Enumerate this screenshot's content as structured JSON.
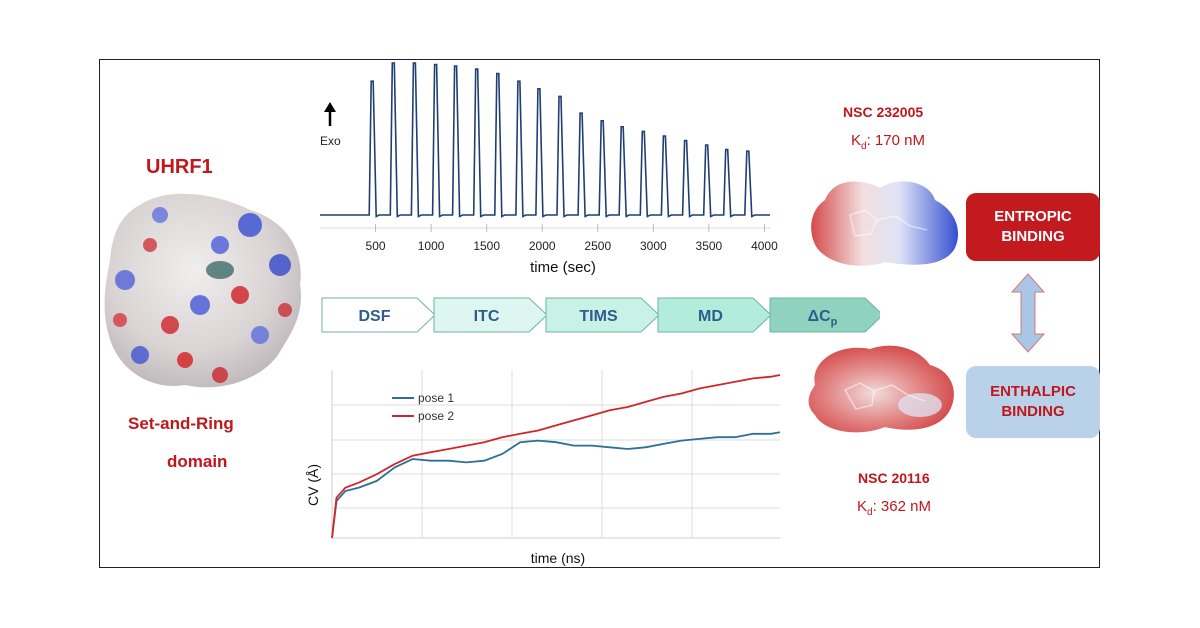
{
  "protein": {
    "name": "UHRF1",
    "domain_line1": "Set-and-Ring",
    "domain_line2": "domain"
  },
  "itc": {
    "exo_label": "Exo",
    "xlabel": "time (sec)",
    "x_ticks": [
      "500",
      "1000",
      "1500",
      "2000",
      "2500",
      "3000",
      "3500",
      "4000"
    ]
  },
  "workflow": {
    "steps": [
      "DSF",
      "ITC",
      "TIMS",
      "MD",
      "ΔC"
    ],
    "last_step_subscript": "p"
  },
  "md": {
    "ylabel": "CV (Å)",
    "xlabel": "time (ns)",
    "legend": [
      "pose 1",
      "pose 2"
    ]
  },
  "compound1": {
    "name": "NSC 232005",
    "kd_label": "K",
    "kd_sub": "d",
    "kd_value": ": 170 nM"
  },
  "compound2": {
    "name": "NSC 20116",
    "kd_label": "K",
    "kd_sub": "d",
    "kd_value": ": 362 nM"
  },
  "binding": {
    "entropic_line1": "ENTROPIC",
    "entropic_line2": "BINDING",
    "enthalpic_line1": "ENTHALPIC",
    "enthalpic_line2": "BINDING"
  },
  "colors": {
    "red_text": "#c0171d",
    "entropic_box": "#c21a1f",
    "enthalpic_box": "#b9d2e9",
    "itc_trace": "#1f3f73",
    "pose1": "#2e6f95",
    "pose2": "#d0262a",
    "step_fills": [
      "#ffffff",
      "#ddf6ef",
      "#c9f2e6",
      "#b4ecdc",
      "#8fd3bf"
    ]
  },
  "chart_data": [
    {
      "type": "line",
      "name": "ITC thermogram",
      "xlabel": "time (sec)",
      "x_ticks": [
        500,
        1000,
        1500,
        2000,
        2500,
        3000,
        3500,
        4000
      ],
      "xlim": [
        0,
        4050
      ],
      "injection_times": [
        470,
        660,
        850,
        1040,
        1220,
        1410,
        1600,
        1790,
        1970,
        2160,
        2350,
        2540,
        2720,
        2910,
        3100,
        3290,
        3480,
        3660,
        3850
      ],
      "relative_peak_heights": [
        0.88,
        1.0,
        1.0,
        0.99,
        0.98,
        0.96,
        0.93,
        0.88,
        0.83,
        0.78,
        0.67,
        0.62,
        0.58,
        0.55,
        0.52,
        0.49,
        0.46,
        0.43,
        0.42
      ]
    },
    {
      "type": "line",
      "name": "MD collective variable",
      "ylabel": "CV (Å)",
      "xlabel": "time (ns)",
      "grid": true,
      "legend_position": "top-left",
      "x_rel": [
        0,
        0.01,
        0.03,
        0.06,
        0.1,
        0.14,
        0.18,
        0.22,
        0.26,
        0.3,
        0.34,
        0.38,
        0.42,
        0.46,
        0.5,
        0.54,
        0.58,
        0.62,
        0.66,
        0.7,
        0.74,
        0.78,
        0.82,
        0.86,
        0.9,
        0.94,
        0.98,
        1.0
      ],
      "series": [
        {
          "name": "pose 1",
          "values": [
            0.0,
            0.22,
            0.28,
            0.3,
            0.34,
            0.42,
            0.47,
            0.46,
            0.46,
            0.45,
            0.46,
            0.5,
            0.57,
            0.58,
            0.57,
            0.55,
            0.55,
            0.54,
            0.53,
            0.54,
            0.56,
            0.58,
            0.59,
            0.6,
            0.6,
            0.62,
            0.62,
            0.63
          ]
        },
        {
          "name": "pose 2",
          "values": [
            0.0,
            0.24,
            0.3,
            0.33,
            0.38,
            0.44,
            0.49,
            0.51,
            0.53,
            0.55,
            0.57,
            0.6,
            0.62,
            0.64,
            0.67,
            0.7,
            0.73,
            0.76,
            0.78,
            0.81,
            0.84,
            0.86,
            0.89,
            0.91,
            0.93,
            0.95,
            0.96,
            0.97
          ]
        }
      ]
    }
  ]
}
